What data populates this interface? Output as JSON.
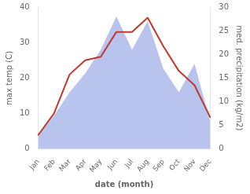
{
  "chart_data": {
    "type": "line",
    "categories": [
      "Jan",
      "Feb",
      "Mar",
      "Apr",
      "May",
      "Jun",
      "Jul",
      "Aug",
      "Sep",
      "Oct",
      "Nov",
      "Dec"
    ],
    "xlabel": "date (month)",
    "ylabel": "max temp (C)",
    "y2label": "med. precipitation (kg/m2)",
    "ylim": [
      0,
      40
    ],
    "yticks": [
      0,
      10,
      20,
      30,
      40
    ],
    "y2lim": [
      0,
      30
    ],
    "y2ticks": [
      0,
      5,
      10,
      15,
      20,
      25,
      30
    ],
    "grid": false,
    "series": [
      {
        "type": "line",
        "color": "#c0392b",
        "values": [
          4,
          10,
          21,
          25,
          26,
          33,
          33,
          37,
          29,
          22,
          18,
          9
        ]
      },
      {
        "type": "area",
        "color": "#b8c4ee",
        "axis": "y2",
        "values": [
          3,
          7,
          12,
          16,
          21,
          28,
          21,
          27,
          17,
          12,
          18,
          6
        ]
      }
    ]
  }
}
